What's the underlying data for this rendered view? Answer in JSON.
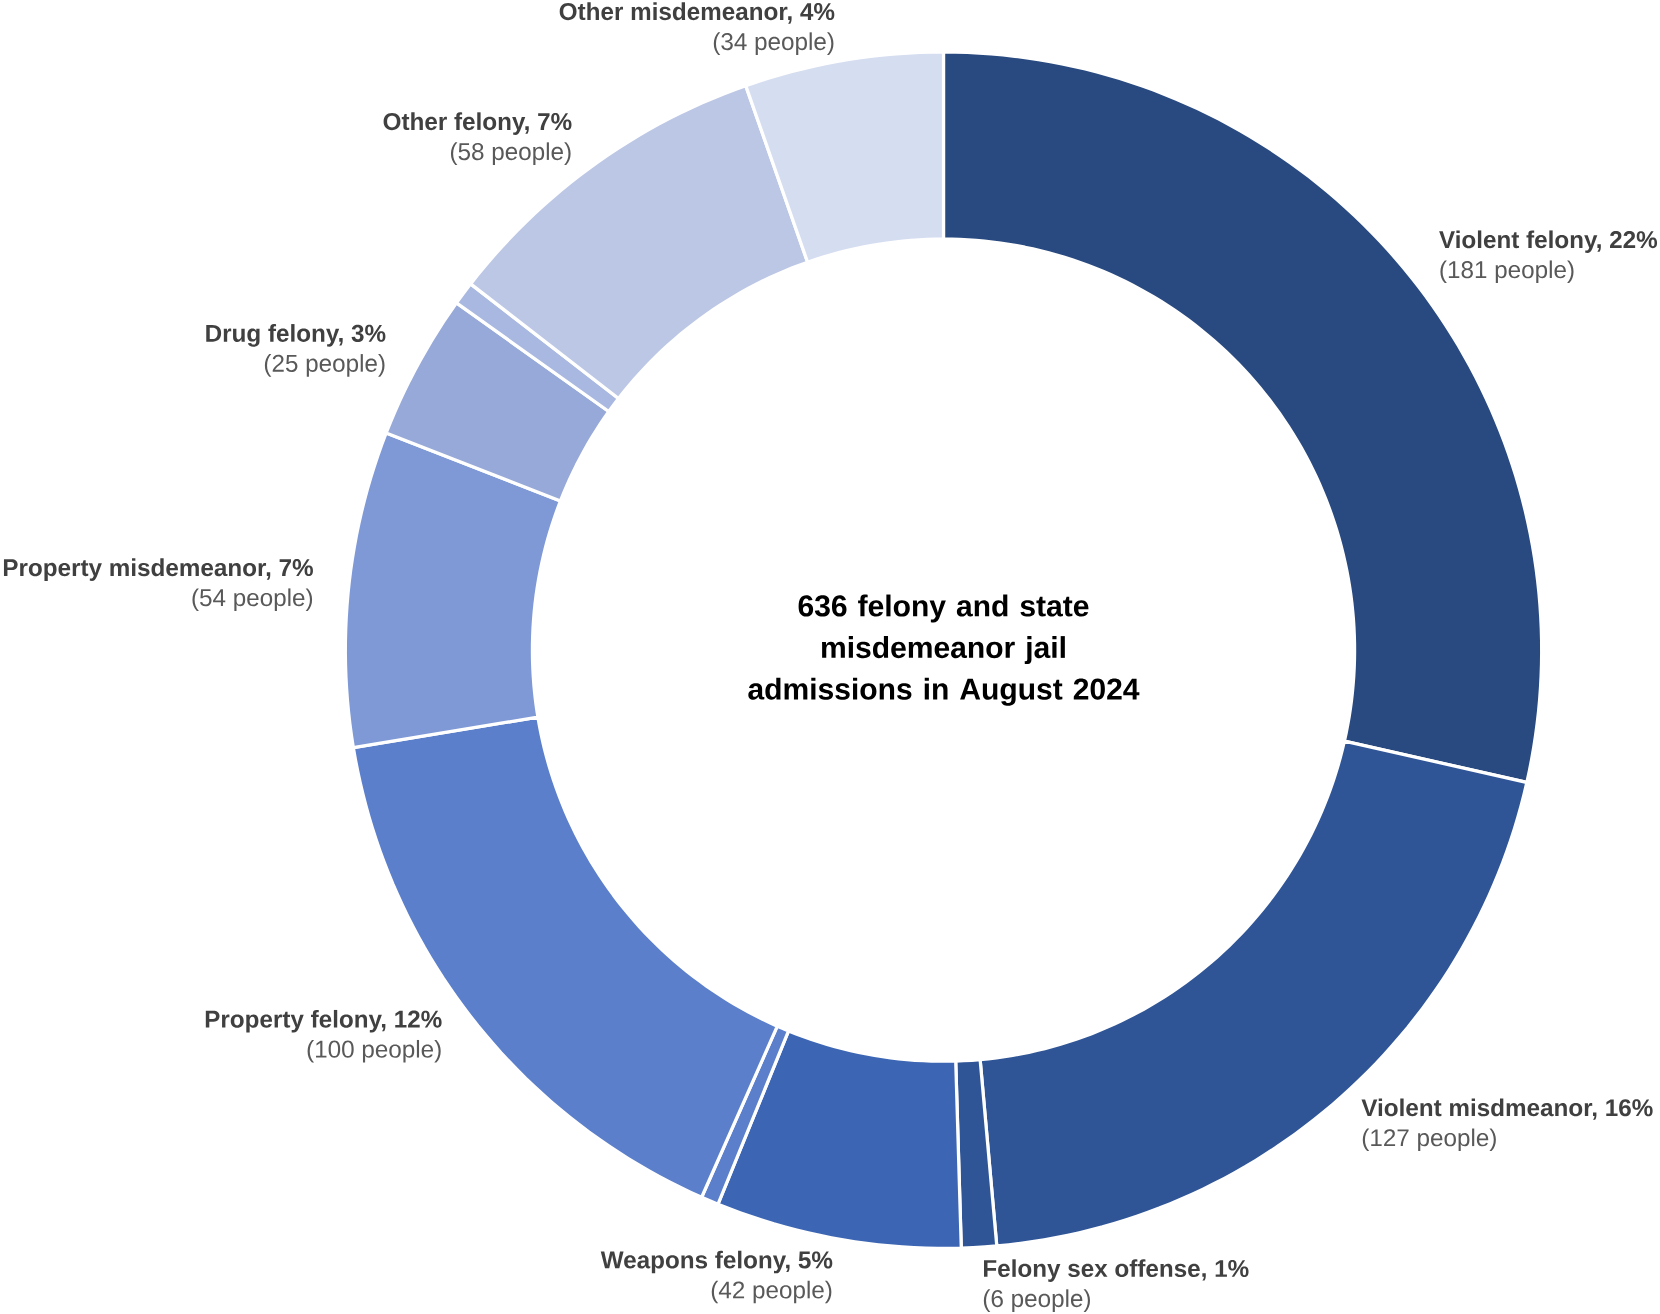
{
  "chart_data": {
    "type": "donut",
    "title": "636 felony and state misdemeanor jail admissions in August 2024",
    "categories": [
      "Violent felony, 22%",
      "Violent misdmeanor, 16%",
      "Felony sex offense, 1%",
      "Weapons felony, 5%",
      null,
      "Property felony, 12%",
      "Property misdemeanor, 7%",
      "Drug felony, 3%",
      null,
      "Other felony, 7%",
      "Other misdemeanor, 4%"
    ],
    "values": [
      181,
      127,
      6,
      42,
      3,
      100,
      54,
      25,
      4,
      58,
      34
    ],
    "value_labels": [
      "(181 people)",
      "(127 people)",
      "(6 people)",
      "(42 people)",
      null,
      "(100 people)",
      "(54 people)",
      "(25 people)",
      null,
      "(58 people)",
      "(34 people)"
    ],
    "colors": [
      "#294a80",
      "#2f5597",
      "#2f5597",
      "#3c66b4",
      "#5b7fcb",
      "#5b7fcb",
      "#7f99d6",
      "#97a9d8",
      "#a9b8e0",
      "#bcc7e5",
      "#d5ddf0"
    ]
  }
}
